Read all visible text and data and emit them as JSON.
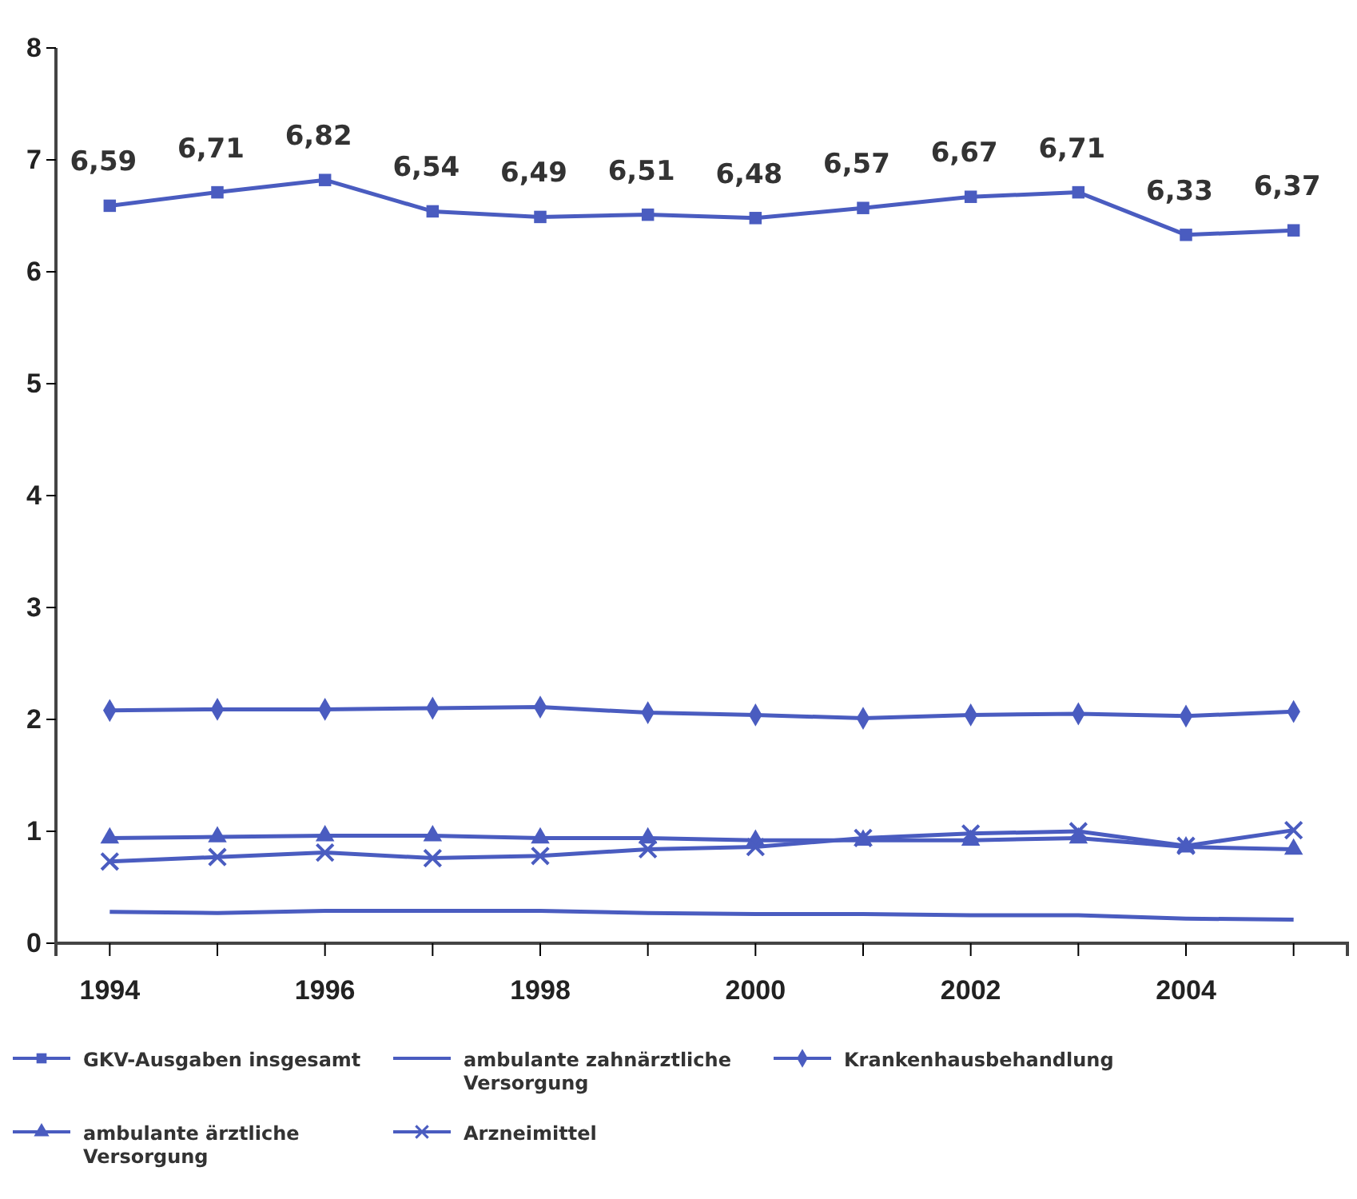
{
  "chart_data": {
    "type": "line",
    "categories": [
      "1994",
      null,
      "1996",
      null,
      "1998",
      null,
      "2000",
      null,
      "2002",
      null,
      "2004",
      null
    ],
    "ylim": [
      0,
      8
    ],
    "yticks": [
      0,
      1,
      2,
      3,
      4,
      5,
      6,
      7,
      8
    ],
    "legend": "bottom",
    "grid": false,
    "series": [
      {
        "name": "GKV-Ausgaben insgesamt",
        "color": "#4a5cc0",
        "marker": "square",
        "values": [
          6.59,
          6.71,
          6.82,
          6.54,
          6.49,
          6.51,
          6.48,
          6.57,
          6.67,
          6.71,
          6.33,
          6.37
        ],
        "value_labels": [
          "6,59",
          "6,71",
          "6,82",
          "6,54",
          "6,49",
          "6,51",
          "6,48",
          "6,57",
          "6,67",
          "6,71",
          "6,33",
          "6,37"
        ]
      },
      {
        "name": "ambulante zahnärztliche Versorgung",
        "color": "#4a5cc0",
        "marker": "none",
        "values": [
          0.28,
          0.27,
          0.29,
          0.29,
          0.29,
          0.27,
          0.26,
          0.26,
          0.25,
          0.25,
          0.22,
          0.21
        ]
      },
      {
        "name": "Krankenhausbehandlung",
        "color": "#4a5cc0",
        "marker": "diamond",
        "values": [
          2.08,
          2.09,
          2.09,
          2.1,
          2.11,
          2.06,
          2.04,
          2.01,
          2.04,
          2.05,
          2.03,
          2.07
        ]
      },
      {
        "name": "ambulante ärztliche Versorgung",
        "color": "#4a5cc0",
        "marker": "triangle",
        "values": [
          0.94,
          0.95,
          0.96,
          0.96,
          0.94,
          0.94,
          0.92,
          0.92,
          0.92,
          0.94,
          0.86,
          0.84
        ]
      },
      {
        "name": "Arzneimittel",
        "color": "#4a5cc0",
        "marker": "cross",
        "values": [
          0.73,
          0.77,
          0.81,
          0.76,
          0.78,
          0.84,
          0.86,
          0.94,
          0.98,
          1.0,
          0.87,
          1.01
        ]
      }
    ]
  }
}
